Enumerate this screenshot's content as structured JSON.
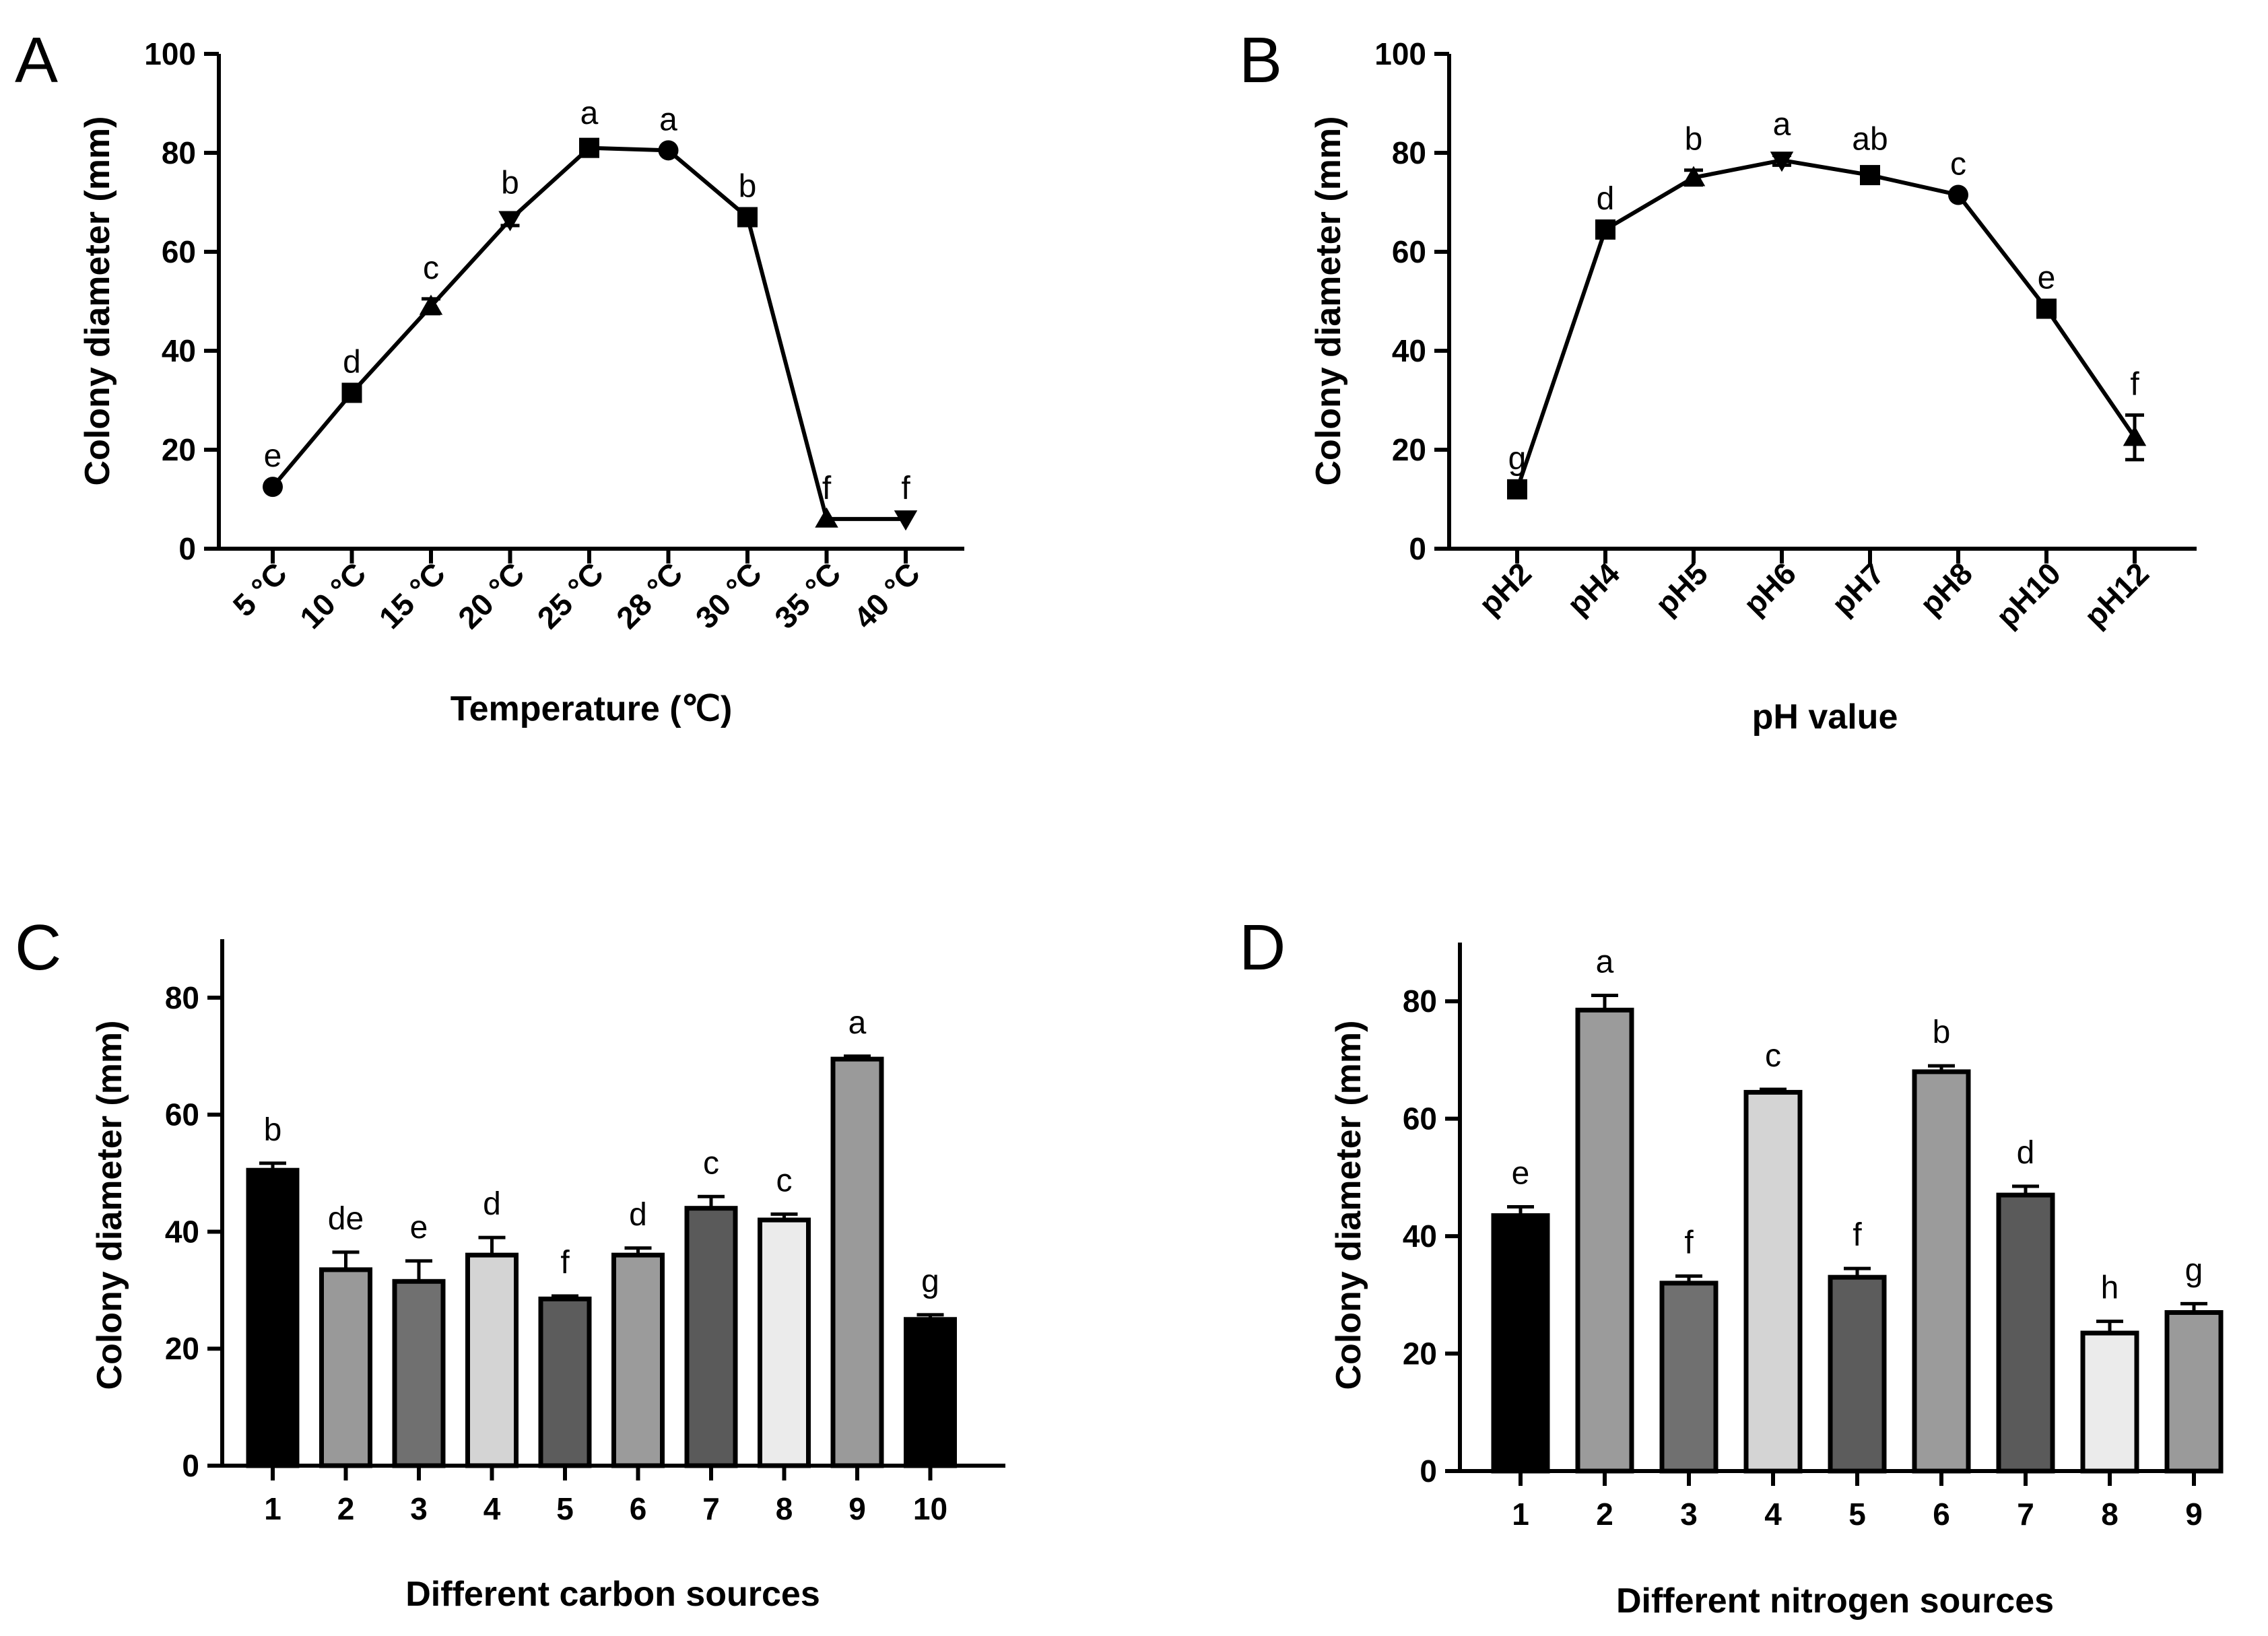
{
  "chart_data": [
    {
      "panel": "A",
      "type": "line",
      "categories": [
        "5 °C",
        "10 °C",
        "15 °C",
        "20 °C",
        "25 °C",
        "28 °C",
        "30 °C",
        "35 °C",
        "40 °C"
      ],
      "values": [
        12.5,
        31.5,
        49,
        66.5,
        81,
        80.5,
        67,
        6,
        6
      ],
      "errors": [
        0,
        0,
        1.5,
        1.2,
        0.8,
        0,
        0,
        0,
        0
      ],
      "markers": [
        "circle",
        "square",
        "triangle",
        "triangle-down",
        "square",
        "circle",
        "square",
        "triangle",
        "triangle-down"
      ],
      "sig_labels": [
        "e",
        "d",
        "c",
        "b",
        "a",
        "a",
        "b",
        "f",
        "f"
      ],
      "xlabel": "Temperature (℃)",
      "ylabel": "Colony diameter (mm)",
      "ylim": [
        0,
        100
      ],
      "yticks": [
        0,
        20,
        40,
        60,
        80,
        100
      ]
    },
    {
      "panel": "B",
      "type": "line",
      "categories": [
        "pH2",
        "pH4",
        "pH5",
        "pH6",
        "pH7",
        "pH8",
        "pH10",
        "pH12"
      ],
      "values": [
        12,
        64.5,
        75,
        78.5,
        75.5,
        71.5,
        48.5,
        22.5
      ],
      "errors": [
        0,
        0,
        1.5,
        1,
        1,
        0,
        0,
        4.5
      ],
      "markers": [
        "square",
        "square",
        "triangle",
        "triangle-down",
        "square",
        "circle",
        "square",
        "triangle"
      ],
      "sig_labels": [
        "g",
        "d",
        "b",
        "a",
        "ab",
        "c",
        "e",
        "f"
      ],
      "xlabel": "pH value",
      "ylabel": "Colony diameter (mm)",
      "ylim": [
        0,
        100
      ],
      "yticks": [
        0,
        20,
        40,
        60,
        80,
        100
      ]
    },
    {
      "panel": "C",
      "type": "bar",
      "categories": [
        "1",
        "2",
        "3",
        "4",
        "5",
        "6",
        "7",
        "8",
        "9",
        "10"
      ],
      "values": [
        50.5,
        33.5,
        31.5,
        36,
        28.5,
        36,
        44,
        42,
        69.5,
        25
      ],
      "errors": [
        1.2,
        3,
        3.5,
        3,
        0.5,
        1.2,
        2,
        1,
        0.5,
        0.8
      ],
      "colors": [
        "#000000",
        "#999999",
        "#707070",
        "#d4d4d4",
        "#5c5c5c",
        "#9b9b9b",
        "#5a5a5a",
        "#ebebeb",
        "#9a9a9a",
        "#000000"
      ],
      "sig_labels": [
        "b",
        "de",
        "e",
        "d",
        "f",
        "d",
        "c",
        "c",
        "a",
        "g"
      ],
      "xlabel": "Different carbon sources",
      "ylabel": "Colony diameter (mm)",
      "ylim": [
        0,
        90
      ],
      "yticks": [
        0,
        20,
        40,
        60,
        80
      ]
    },
    {
      "panel": "D",
      "type": "bar",
      "categories": [
        "1",
        "2",
        "3",
        "4",
        "5",
        "6",
        "7",
        "8",
        "9"
      ],
      "values": [
        43.5,
        78.5,
        32,
        64.5,
        33,
        68,
        47,
        23.5,
        27
      ],
      "errors": [
        1.5,
        2.5,
        1.2,
        0.5,
        1.5,
        1,
        1.5,
        2,
        1.5
      ],
      "colors": [
        "#000000",
        "#9b9b9b",
        "#707070",
        "#d4d4d4",
        "#5c5c5c",
        "#9b9b9b",
        "#5a5a5a",
        "#ebebeb",
        "#9a9a9a"
      ],
      "sig_labels": [
        "e",
        "a",
        "f",
        "c",
        "f",
        "b",
        "d",
        "h",
        "g"
      ],
      "xlabel": "Different nitrogen sources",
      "ylabel": "Colony diameter (mm)",
      "ylim": [
        0,
        90
      ],
      "yticks": [
        0,
        20,
        40,
        60,
        80
      ]
    }
  ]
}
